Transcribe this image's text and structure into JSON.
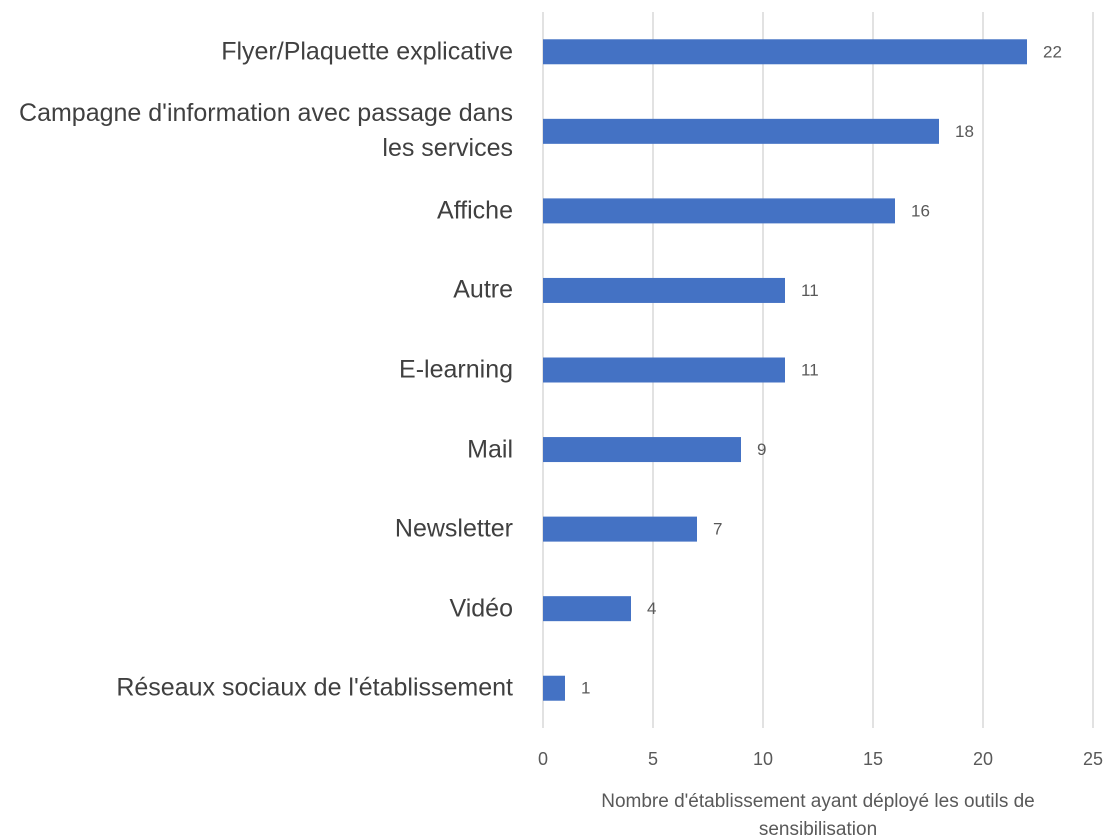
{
  "chart_data": {
    "type": "bar",
    "orientation": "horizontal",
    "categories": [
      "Flyer/Plaquette explicative",
      "Campagne d'information avec passage dans les services",
      "Affiche",
      "Autre",
      "E-learning",
      "Mail",
      "Newsletter",
      "Vidéo",
      "Réseaux sociaux de l'établissement"
    ],
    "values": [
      22,
      18,
      16,
      11,
      11,
      9,
      7,
      4,
      1
    ],
    "color": "#4472c4",
    "x_label": "Nombre d'établissement ayant déployé les outils de sensibilisation",
    "xlim": [
      0,
      25
    ],
    "xticks": [
      0,
      5,
      10,
      15,
      20,
      25
    ],
    "grid": true
  }
}
